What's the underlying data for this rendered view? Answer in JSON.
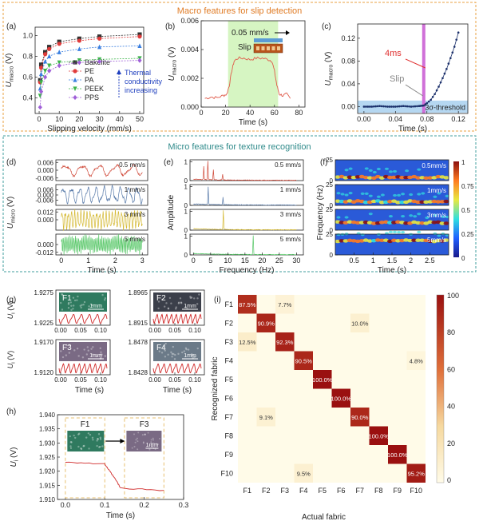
{
  "sections": {
    "macro_title": "Macro features for slip detection",
    "micro_title": "Micro features for texture recognition"
  },
  "colors": {
    "orange_border": "#e8a040",
    "orange_title": "#e07b24",
    "teal_border": "#3f9c9c",
    "teal_title": "#2f8a8a",
    "blue_note": "#1f3fbf",
    "slip_fill": "#d6f5c2",
    "magenta": "#d070d8"
  },
  "chart_data": [
    {
      "id": "a",
      "panel_label": "(a)",
      "type": "line",
      "xlabel": "Slipping velocity (mm/s)",
      "ylabel": "U",
      "ylabel_sub": "macro",
      "ylabel_unit": "(V)",
      "xlim": [
        -2,
        52
      ],
      "ylim": [
        0.25,
        1.08
      ],
      "xticks": [
        0,
        10,
        20,
        30,
        40,
        50
      ],
      "yticks": [
        0.4,
        0.6,
        0.8,
        1.0
      ],
      "ytick_labels": [
        "0.4",
        "0.6",
        "0.8",
        "1.0"
      ],
      "x": [
        0.5,
        1,
        3,
        5,
        10,
        20,
        30,
        50
      ],
      "series": [
        {
          "name": "Bakelite",
          "color": "#333333",
          "marker": "square",
          "values": [
            0.57,
            0.72,
            0.84,
            0.89,
            0.94,
            0.97,
            0.99,
            1.01
          ]
        },
        {
          "name": "PE",
          "color": "#e03b3b",
          "marker": "circle",
          "values": [
            0.55,
            0.69,
            0.82,
            0.87,
            0.92,
            0.95,
            0.97,
            0.99
          ]
        },
        {
          "name": "PA",
          "color": "#3a7fe0",
          "marker": "triangle",
          "values": [
            0.49,
            0.63,
            0.75,
            0.8,
            0.84,
            0.87,
            0.89,
            0.9
          ]
        },
        {
          "name": "PEEK",
          "color": "#3cb54a",
          "marker": "triangle-down",
          "values": [
            0.42,
            0.55,
            0.66,
            0.71,
            0.74,
            0.76,
            0.77,
            0.78
          ]
        },
        {
          "name": "PPS",
          "color": "#a060d8",
          "marker": "diamond",
          "values": [
            0.31,
            0.46,
            0.6,
            0.66,
            0.71,
            0.74,
            0.75,
            0.76
          ]
        }
      ],
      "annotation": "Thermal conductivity increasing"
    },
    {
      "id": "b",
      "panel_label": "(b)",
      "type": "line",
      "xlabel": "Time (s)",
      "ylabel": "U",
      "ylabel_sub": "macro",
      "ylabel_unit": "(V)",
      "xlim": [
        0,
        85
      ],
      "ylim": [
        0,
        0.006
      ],
      "xticks": [
        0,
        20,
        40,
        60,
        80
      ],
      "yticks": [
        0,
        0.002,
        0.004,
        0.006
      ],
      "ytick_labels": [
        "0.000",
        "0.002",
        "0.004",
        "0.006"
      ],
      "slip_window": [
        22,
        63
      ],
      "speed_label": "0.05 mm/s",
      "slip_label": "Slip",
      "x": [
        3,
        8,
        13,
        18,
        21,
        23,
        25,
        27,
        30,
        35,
        40,
        45,
        50,
        55,
        58,
        60,
        62,
        64,
        67,
        70,
        73
      ],
      "values": [
        0.0006,
        0.0007,
        0.00065,
        0.0008,
        0.0009,
        0.0015,
        0.0025,
        0.0032,
        0.0034,
        0.0034,
        0.0033,
        0.0034,
        0.0034,
        0.0033,
        0.0032,
        0.0025,
        0.0015,
        0.0009,
        0.0008,
        0.0009,
        0.0006
      ],
      "color": "#e05a4a"
    },
    {
      "id": "c",
      "panel_label": "(c)",
      "type": "line",
      "xlabel": "Time (s)",
      "ylabel": "U",
      "ylabel_sub": "macro",
      "ylabel_unit": "(V)",
      "xlim": [
        -0.008,
        0.132
      ],
      "ylim": [
        -0.012,
        0.145
      ],
      "xticks": [
        0,
        0.04,
        0.08,
        0.12
      ],
      "xtick_labels": [
        "0.00",
        "0.04",
        "0.08",
        "0.12"
      ],
      "yticks": [
        0,
        0.04,
        0.08,
        0.12
      ],
      "ytick_labels": [
        "0.00",
        "0.04",
        "0.08",
        "0.12"
      ],
      "threshold_band": [
        -0.005,
        0.005
      ],
      "threshold_label": "3σ-threshold",
      "slip_time": 0.076,
      "slip_label": "Slip",
      "delay_label": "4ms",
      "x": [
        0,
        0.01,
        0.02,
        0.03,
        0.04,
        0.05,
        0.06,
        0.07,
        0.076,
        0.08,
        0.085,
        0.09,
        0.095,
        0.1,
        0.105,
        0.11,
        0.115,
        0.12
      ],
      "values": [
        0,
        0,
        0.001,
        0,
        0,
        0.001,
        0,
        0.001,
        0.002,
        0.006,
        0.012,
        0.022,
        0.035,
        0.05,
        0.066,
        0.085,
        0.105,
        0.13
      ],
      "color": "#1a2f6a"
    },
    {
      "id": "d",
      "panel_label": "(d)",
      "type": "line",
      "xlabel": "Time (s)",
      "ylabel": "U",
      "ylabel_sub": "micro",
      "ylabel_unit": "(V)",
      "xlim": [
        -0.2,
        3.2
      ],
      "xticks": [
        0,
        1,
        2,
        3
      ],
      "rows": [
        {
          "label": "0.5 mm/s",
          "color": "#d04a3a",
          "ylim": [
            -0.008,
            0.008
          ],
          "yticks": [
            -0.006,
            0,
            0.006
          ],
          "ytick_labels": [
            "-0.006",
            "0.000",
            "0.006"
          ],
          "freq": 1.6,
          "amp": 0.0035
        },
        {
          "label": "1 mm/s",
          "color": "#5578a8",
          "ylim": [
            -0.012,
            0.012
          ],
          "yticks": [
            -0.006,
            0,
            0.006
          ],
          "ytick_labels": [
            "-0.006",
            "0.000",
            "0.006"
          ],
          "freq": 3.3,
          "amp": 0.0075
        },
        {
          "label": "3 mm/s",
          "color": "#d4b830",
          "ylim": [
            -0.016,
            0.016
          ],
          "yticks": [
            0,
            0.012
          ],
          "ytick_labels": [
            "0.000",
            "0.012"
          ],
          "freq": 8.6,
          "amp": 0.011
        },
        {
          "label": "5 mm/s",
          "color": "#5ac86a",
          "ylim": [
            -0.016,
            0.016
          ],
          "yticks": [
            0,
            -0.012
          ],
          "ytick_labels": [
            "0.000",
            "-0.012"
          ],
          "freq": 17.5,
          "amp": 0.011
        }
      ]
    },
    {
      "id": "e",
      "panel_label": "(e)",
      "type": "line",
      "xlabel": "Frequency (Hz)",
      "ylabel": "Amplitude",
      "xlim": [
        -1,
        32
      ],
      "xticks": [
        0,
        5,
        10,
        15,
        20,
        25,
        30
      ],
      "rows": [
        {
          "label": "0.5 mm/s",
          "color": "#d04a3a",
          "ylim": [
            0,
            1.1
          ],
          "yticks": [
            0,
            1
          ],
          "ytick_labels": [
            "0",
            "1"
          ],
          "peaks": [
            [
              3,
              0.7
            ],
            [
              4.2,
              1.0
            ],
            [
              5.8,
              0.55
            ],
            [
              8.5,
              0.3
            ]
          ]
        },
        {
          "label": "1 mm/s",
          "color": "#5578a8",
          "ylim": [
            0,
            1.1
          ],
          "yticks": [
            0,
            1
          ],
          "ytick_labels": [
            "0",
            "1"
          ],
          "peaks": [
            [
              4.3,
              0.95
            ],
            [
              8.6,
              0.4
            ]
          ]
        },
        {
          "label": "3 mm/s",
          "color": "#d4b830",
          "ylim": [
            0,
            1.1
          ],
          "yticks": [
            0,
            1
          ],
          "ytick_labels": [
            "0",
            "1"
          ],
          "peaks": [
            [
              8.7,
              1.0
            ]
          ]
        },
        {
          "label": "5 mm/s",
          "color": "#5ac86a",
          "ylim": [
            0,
            1.1
          ],
          "yticks": [
            0,
            1
          ],
          "ytick_labels": [
            "0",
            "1"
          ],
          "peaks": [
            [
              17.4,
              1.0
            ]
          ]
        }
      ]
    },
    {
      "id": "f",
      "panel_label": "(f)",
      "type": "heatmap",
      "xlabel": "Time (s)",
      "ylabel": "Frequency (Hz)",
      "xticks": [
        0.5,
        1,
        1.5,
        2,
        2.5
      ],
      "xtick_labels": [
        "0.5",
        "1",
        "1.5",
        "2",
        "2.5"
      ],
      "xlim": [
        0,
        3
      ],
      "yticks": [
        0,
        25
      ],
      "ytick_labels": [
        "0",
        "25"
      ],
      "rows": [
        {
          "label": "0.5mm/s",
          "band": 4
        },
        {
          "label": "1mm/s",
          "band": 4.5
        },
        {
          "label": "3mm/s",
          "band": 9
        },
        {
          "label": "5mm/s",
          "band": 17
        }
      ],
      "colorbar_ticks": [
        "1",
        "0.75",
        "0.5",
        "0.25",
        "0"
      ]
    },
    {
      "id": "g",
      "panel_label": "(g)",
      "type": "line",
      "xlabel": "Time (s)",
      "ylabel": "U",
      "ylabel_sub": "i",
      "ylabel_unit": "(V)",
      "panels": [
        {
          "fabric": "F1",
          "ylabels": [
            "1.9275",
            "1.9225"
          ],
          "xtick_labels": [
            "0.00",
            "0.05",
            "0.10"
          ],
          "color": "#d02a2a",
          "swatch": "#2f7a5f",
          "scale": "1mm",
          "freq": 6
        },
        {
          "fabric": "F2",
          "ylabels": [
            "1.8965",
            "1.8915"
          ],
          "xtick_labels": [
            "0.00",
            "0.05",
            "0.10"
          ],
          "color": "#d02a2a",
          "swatch": "#3b3f4a",
          "scale": "1mm",
          "freq": 10
        },
        {
          "fabric": "F3",
          "ylabels": [
            "1.9170",
            "1.9120"
          ],
          "xtick_labels": [
            "0.00",
            "0.05",
            "0.10"
          ],
          "color": "#d02a2a",
          "swatch": "#7a6a84",
          "scale": "1mm",
          "freq": 9
        },
        {
          "fabric": "F4",
          "ylabels": [
            "1.8478",
            "1.8428"
          ],
          "xtick_labels": [
            "0.00",
            "0.05",
            "0.10"
          ],
          "color": "#d02a2a",
          "swatch": "#6b7a88",
          "scale": "1mm",
          "freq": 8
        }
      ]
    },
    {
      "id": "h",
      "panel_label": "(h)",
      "type": "line",
      "xlabel": "Time (s)",
      "ylabel": "U",
      "ylabel_sub": "i",
      "ylabel_unit": "(V)",
      "xlim": [
        -0.02,
        0.3
      ],
      "ylim": [
        1.91,
        1.94
      ],
      "xticks": [
        0,
        0.1,
        0.2,
        0.3
      ],
      "xtick_labels": [
        "0.0",
        "0.1",
        "0.2",
        "0.3"
      ],
      "yticks": [
        1.91,
        1.915,
        1.92,
        1.925,
        1.93,
        1.935,
        1.94
      ],
      "ytick_labels": [
        "1.910",
        "1.915",
        "1.920",
        "1.925",
        "1.930",
        "1.935",
        "1.940"
      ],
      "window_1": [
        0,
        0.1
      ],
      "window_2": [
        0.15,
        0.25
      ],
      "label_1": "F1",
      "label_2": "F3",
      "scale": "1mm",
      "color": "#d02a2a",
      "x": [
        0,
        0.1,
        0.115,
        0.13,
        0.14,
        0.25
      ],
      "values": [
        1.9233,
        1.9225,
        1.9195,
        1.9165,
        1.914,
        1.9132
      ]
    },
    {
      "id": "i",
      "panel_label": "(i)",
      "type": "heatmap",
      "xlabel": "Actual fabric",
      "ylabel": "Recognized fabric",
      "categories": [
        "F1",
        "F2",
        "F3",
        "F4",
        "F5",
        "F6",
        "F7",
        "F8",
        "F9",
        "F10"
      ],
      "cells": [
        {
          "row": 0,
          "col": 0,
          "value": 87.5,
          "label": "87.5%"
        },
        {
          "row": 0,
          "col": 2,
          "value": 7.7,
          "label": "7.7%"
        },
        {
          "row": 1,
          "col": 1,
          "value": 90.9,
          "label": "90.9%"
        },
        {
          "row": 1,
          "col": 6,
          "value": 10.0,
          "label": "10.0%"
        },
        {
          "row": 2,
          "col": 0,
          "value": 12.5,
          "label": "12.5%"
        },
        {
          "row": 2,
          "col": 2,
          "value": 92.3,
          "label": "92.3%"
        },
        {
          "row": 3,
          "col": 3,
          "value": 90.5,
          "label": "90.5%"
        },
        {
          "row": 3,
          "col": 9,
          "value": 4.8,
          "label": "4.8%"
        },
        {
          "row": 4,
          "col": 4,
          "value": 100,
          "label": "100.0%"
        },
        {
          "row": 5,
          "col": 5,
          "value": 100,
          "label": "100.0%"
        },
        {
          "row": 6,
          "col": 1,
          "value": 9.1,
          "label": "9.1%"
        },
        {
          "row": 6,
          "col": 6,
          "value": 90,
          "label": "90.0%"
        },
        {
          "row": 7,
          "col": 7,
          "value": 100,
          "label": "100.0%"
        },
        {
          "row": 8,
          "col": 8,
          "value": 100,
          "label": "100.0%"
        },
        {
          "row": 9,
          "col": 3,
          "value": 9.5,
          "label": "9.5%"
        },
        {
          "row": 9,
          "col": 9,
          "value": 95.2,
          "label": "95.2%"
        }
      ],
      "colorbar_ticks": [
        "100",
        "80",
        "60",
        "40",
        "20",
        "0"
      ],
      "vmin": 0,
      "vmax": 100
    }
  ]
}
